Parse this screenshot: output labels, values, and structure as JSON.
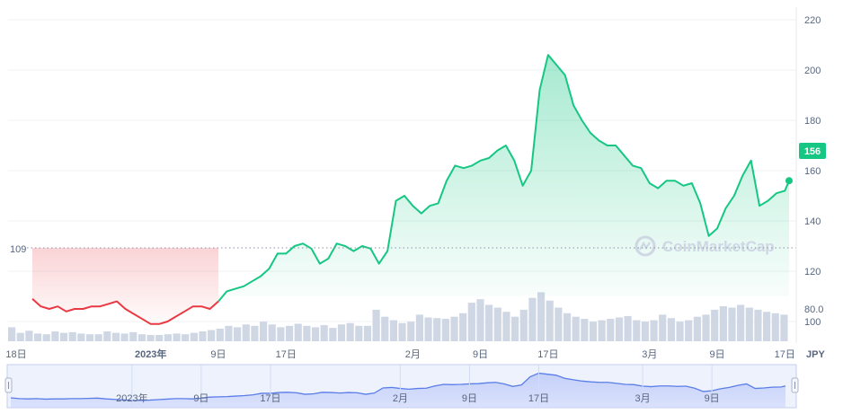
{
  "chart_data": {
    "type": "area",
    "y_ticks": [
      220,
      200,
      180,
      160,
      140,
      120,
      100
    ],
    "ylim": [
      90,
      225
    ],
    "reference_line": {
      "value": 109,
      "label": "109"
    },
    "current_price": {
      "value": 156,
      "label": "156"
    },
    "currency": "JPY",
    "volume_label": "80.0",
    "watermark": "CoinMarketCap",
    "x_ticks": [
      {
        "day": 0,
        "label": "18日",
        "bold": false
      },
      {
        "day": 14,
        "label": "2023年",
        "bold": true
      },
      {
        "day": 22,
        "label": "9日",
        "bold": false
      },
      {
        "day": 30,
        "label": "17日",
        "bold": false
      },
      {
        "day": 45,
        "label": "2月",
        "bold": false
      },
      {
        "day": 53,
        "label": "9日",
        "bold": false
      },
      {
        "day": 61,
        "label": "17日",
        "bold": false
      },
      {
        "day": 73,
        "label": "3月",
        "bold": false
      },
      {
        "day": 81,
        "label": "9日",
        "bold": false
      },
      {
        "day": 89,
        "label": "17日",
        "bold": false
      }
    ],
    "navigator_ticks": [
      {
        "day": 14,
        "label": "2023年"
      },
      {
        "day": 22,
        "label": "9日"
      },
      {
        "day": 30,
        "label": "17日"
      },
      {
        "day": 45,
        "label": "2月"
      },
      {
        "day": 53,
        "label": "9日"
      },
      {
        "day": 61,
        "label": "17日"
      },
      {
        "day": 73,
        "label": "3月"
      },
      {
        "day": 81,
        "label": "9日"
      }
    ],
    "price_series": {
      "x_days": [
        0,
        1,
        2,
        3,
        4,
        5,
        6,
        7,
        8,
        9,
        10,
        11,
        12,
        13,
        14,
        15,
        16,
        17,
        18,
        19,
        20,
        21,
        22,
        23,
        24,
        25,
        26,
        27,
        28,
        29,
        30,
        31,
        32,
        33,
        34,
        35,
        36,
        37,
        38,
        39,
        40,
        41,
        42,
        43,
        44,
        45,
        46,
        47,
        48,
        49,
        50,
        51,
        52,
        53,
        54,
        55,
        56,
        57,
        58,
        59,
        60,
        61,
        62,
        63,
        64,
        65,
        66,
        67,
        68,
        69,
        70,
        71,
        72,
        73,
        74,
        75,
        76,
        77,
        78,
        79,
        80,
        81,
        82,
        83,
        84,
        85,
        86,
        87,
        88,
        89,
        89.5
      ],
      "values": [
        109,
        106,
        105,
        106,
        104,
        105,
        105,
        106,
        106,
        107,
        108,
        105,
        103,
        101,
        99,
        99,
        100,
        102,
        104,
        106,
        106,
        105,
        108,
        112,
        113,
        114,
        116,
        118,
        121,
        127,
        127,
        130,
        131,
        129,
        123,
        125,
        131,
        130,
        128,
        130,
        129,
        123,
        128,
        148,
        150,
        146,
        143,
        146,
        147,
        156,
        162,
        161,
        162,
        164,
        165,
        168,
        170,
        164,
        154,
        160,
        192,
        206,
        202,
        198,
        186,
        180,
        175,
        172,
        170,
        170,
        166,
        162,
        161,
        155,
        153,
        156,
        156,
        154,
        155,
        147,
        134,
        137,
        145,
        150,
        158,
        164,
        146,
        148,
        151,
        152,
        156
      ],
      "up_color": "#16c784",
      "down_color": "#ea3943"
    },
    "volume_series": [
      20,
      12,
      15,
      11,
      10,
      14,
      12,
      13,
      11,
      10,
      10,
      14,
      12,
      11,
      13,
      10,
      9,
      9,
      10,
      11,
      10,
      12,
      14,
      16,
      18,
      22,
      20,
      24,
      22,
      28,
      24,
      20,
      22,
      25,
      22,
      20,
      23,
      19,
      24,
      26,
      22,
      22,
      45,
      35,
      30,
      26,
      28,
      38,
      34,
      33,
      32,
      35,
      40,
      55,
      60,
      52,
      48,
      42,
      35,
      45,
      62,
      70,
      58,
      48,
      40,
      35,
      32,
      28,
      30,
      32,
      34,
      36,
      30,
      28,
      30,
      38,
      33,
      28,
      30,
      35,
      38,
      45,
      50,
      48,
      52,
      48,
      45,
      42,
      40,
      38
    ]
  }
}
